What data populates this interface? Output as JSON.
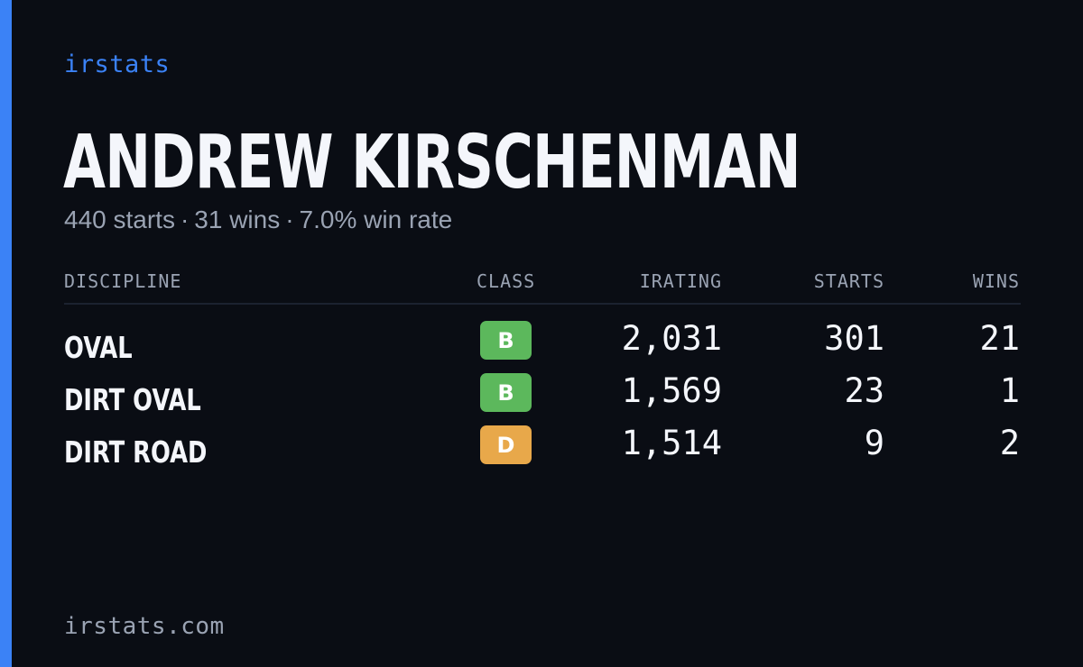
{
  "brand": "irstats",
  "driver": {
    "name": "ANDREW KIRSCHENMAN"
  },
  "summary": {
    "starts": "440 starts",
    "wins": "31 wins",
    "win_rate": "7.0% win rate",
    "separator": "·"
  },
  "table": {
    "headers": {
      "discipline": "DISCIPLINE",
      "class": "CLASS",
      "irating": "IRATING",
      "starts": "STARTS",
      "wins": "WINS"
    },
    "rows": [
      {
        "discipline": "OVAL",
        "class": "B",
        "class_color": "#5cb85c",
        "irating": "2,031",
        "starts": "301",
        "wins": "21"
      },
      {
        "discipline": "DIRT OVAL",
        "class": "B",
        "class_color": "#5cb85c",
        "irating": "1,569",
        "starts": "23",
        "wins": "1"
      },
      {
        "discipline": "DIRT ROAD",
        "class": "D",
        "class_color": "#e8a84a",
        "irating": "1,514",
        "starts": "9",
        "wins": "2"
      }
    ]
  },
  "footer": {
    "domain": "irstats.com"
  },
  "colors": {
    "accent": "#3b82f6",
    "background": "#0a0d14",
    "muted_text": "#9aa3b3",
    "class_b": "#5cb85c",
    "class_d": "#e8a84a"
  }
}
